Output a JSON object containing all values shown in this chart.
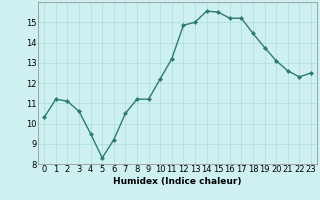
{
  "x": [
    0,
    1,
    2,
    3,
    4,
    5,
    6,
    7,
    8,
    9,
    10,
    11,
    12,
    13,
    14,
    15,
    16,
    17,
    18,
    19,
    20,
    21,
    22,
    23
  ],
  "y": [
    10.3,
    11.2,
    11.1,
    10.6,
    9.5,
    8.3,
    9.2,
    10.5,
    11.2,
    11.2,
    12.2,
    13.2,
    14.85,
    15.0,
    15.55,
    15.5,
    15.2,
    15.2,
    14.45,
    13.75,
    13.1,
    12.6,
    12.3,
    12.5
  ],
  "line_color": "#2d7d6e",
  "marker": "D",
  "marker_size": 2.0,
  "bg_color": "#cff0f0",
  "grid_color": "#aadddd",
  "xlabel": "Humidex (Indice chaleur)",
  "ylim": [
    8,
    16
  ],
  "xlim": [
    -0.5,
    23.5
  ],
  "yticks": [
    8,
    9,
    10,
    11,
    12,
    13,
    14,
    15
  ],
  "xticks": [
    0,
    1,
    2,
    3,
    4,
    5,
    6,
    7,
    8,
    9,
    10,
    11,
    12,
    13,
    14,
    15,
    16,
    17,
    18,
    19,
    20,
    21,
    22,
    23
  ],
  "xlabel_fontsize": 6.5,
  "tick_fontsize": 6.0,
  "linewidth": 1.0
}
